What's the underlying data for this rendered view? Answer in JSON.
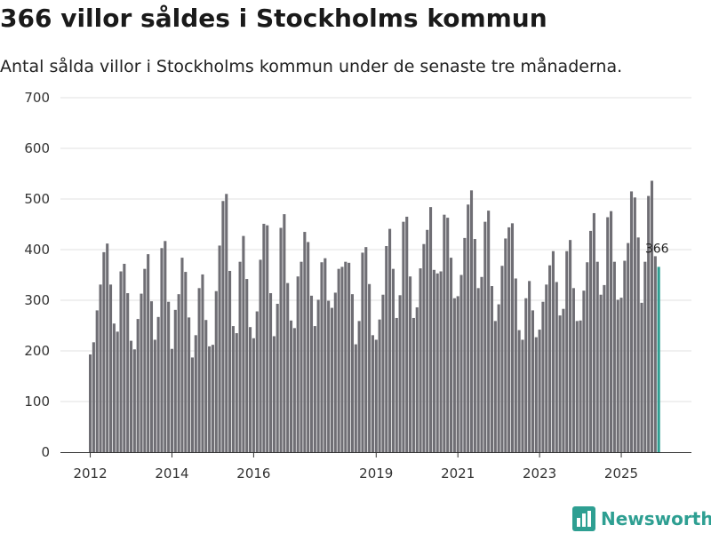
{
  "title": "366 villor såldes i Stockholms kommun",
  "subtitle": "Antal sålda villor i Stockholms kommun under de senaste tre månaderna.",
  "brand": "Newsworthy",
  "colors": {
    "bar": "#6f6e74",
    "highlight": "#2e9f92",
    "grid": "#e0e0e0",
    "axis": "#333333",
    "brand": "#2e9f92"
  },
  "chart_data": {
    "type": "bar",
    "title": "366 villor såldes i Stockholms kommun",
    "xlabel": "",
    "ylabel": "",
    "ylim": [
      0,
      700
    ],
    "yticks": [
      0,
      100,
      200,
      300,
      400,
      500,
      600,
      700
    ],
    "xtick_labels": [
      {
        "label": "2012",
        "index": 0
      },
      {
        "label": "2014",
        "index": 24
      },
      {
        "label": "2016",
        "index": 48
      },
      {
        "label": "2019",
        "index": 84
      },
      {
        "label": "2021",
        "index": 108
      },
      {
        "label": "2023",
        "index": 132
      },
      {
        "label": "2025",
        "index": 156
      }
    ],
    "start_month": "2012-01",
    "highlight_label": "366",
    "values": [
      193,
      217,
      280,
      331,
      395,
      412,
      331,
      254,
      238,
      357,
      372,
      314,
      220,
      203,
      263,
      313,
      362,
      391,
      298,
      222,
      267,
      403,
      417,
      297,
      204,
      281,
      312,
      384,
      356,
      266,
      187,
      231,
      324,
      351,
      261,
      209,
      212,
      318,
      408,
      496,
      510,
      358,
      249,
      235,
      376,
      427,
      342,
      247,
      225,
      278,
      380,
      451,
      448,
      314,
      229,
      293,
      443,
      470,
      334,
      260,
      245,
      347,
      376,
      435,
      415,
      309,
      249,
      301,
      375,
      383,
      299,
      285,
      315,
      362,
      366,
      376,
      374,
      312,
      213,
      259,
      394,
      405,
      332,
      231,
      222,
      262,
      311,
      407,
      441,
      362,
      265,
      310,
      455,
      465,
      347,
      265,
      286,
      363,
      411,
      439,
      484,
      360,
      353,
      357,
      469,
      463,
      384,
      304,
      308,
      350,
      423,
      489,
      517,
      421,
      324,
      346,
      455,
      477,
      328,
      259,
      292,
      368,
      422,
      444,
      452,
      343,
      241,
      222,
      304,
      338,
      280,
      227,
      242,
      297,
      331,
      369,
      397,
      336,
      270,
      283,
      397,
      419,
      324,
      259,
      260,
      319,
      375,
      437,
      472,
      376,
      311,
      330,
      464,
      476,
      376,
      301,
      305,
      378,
      413,
      515,
      503,
      424,
      295,
      376,
      506,
      536,
      387,
      366
    ]
  }
}
